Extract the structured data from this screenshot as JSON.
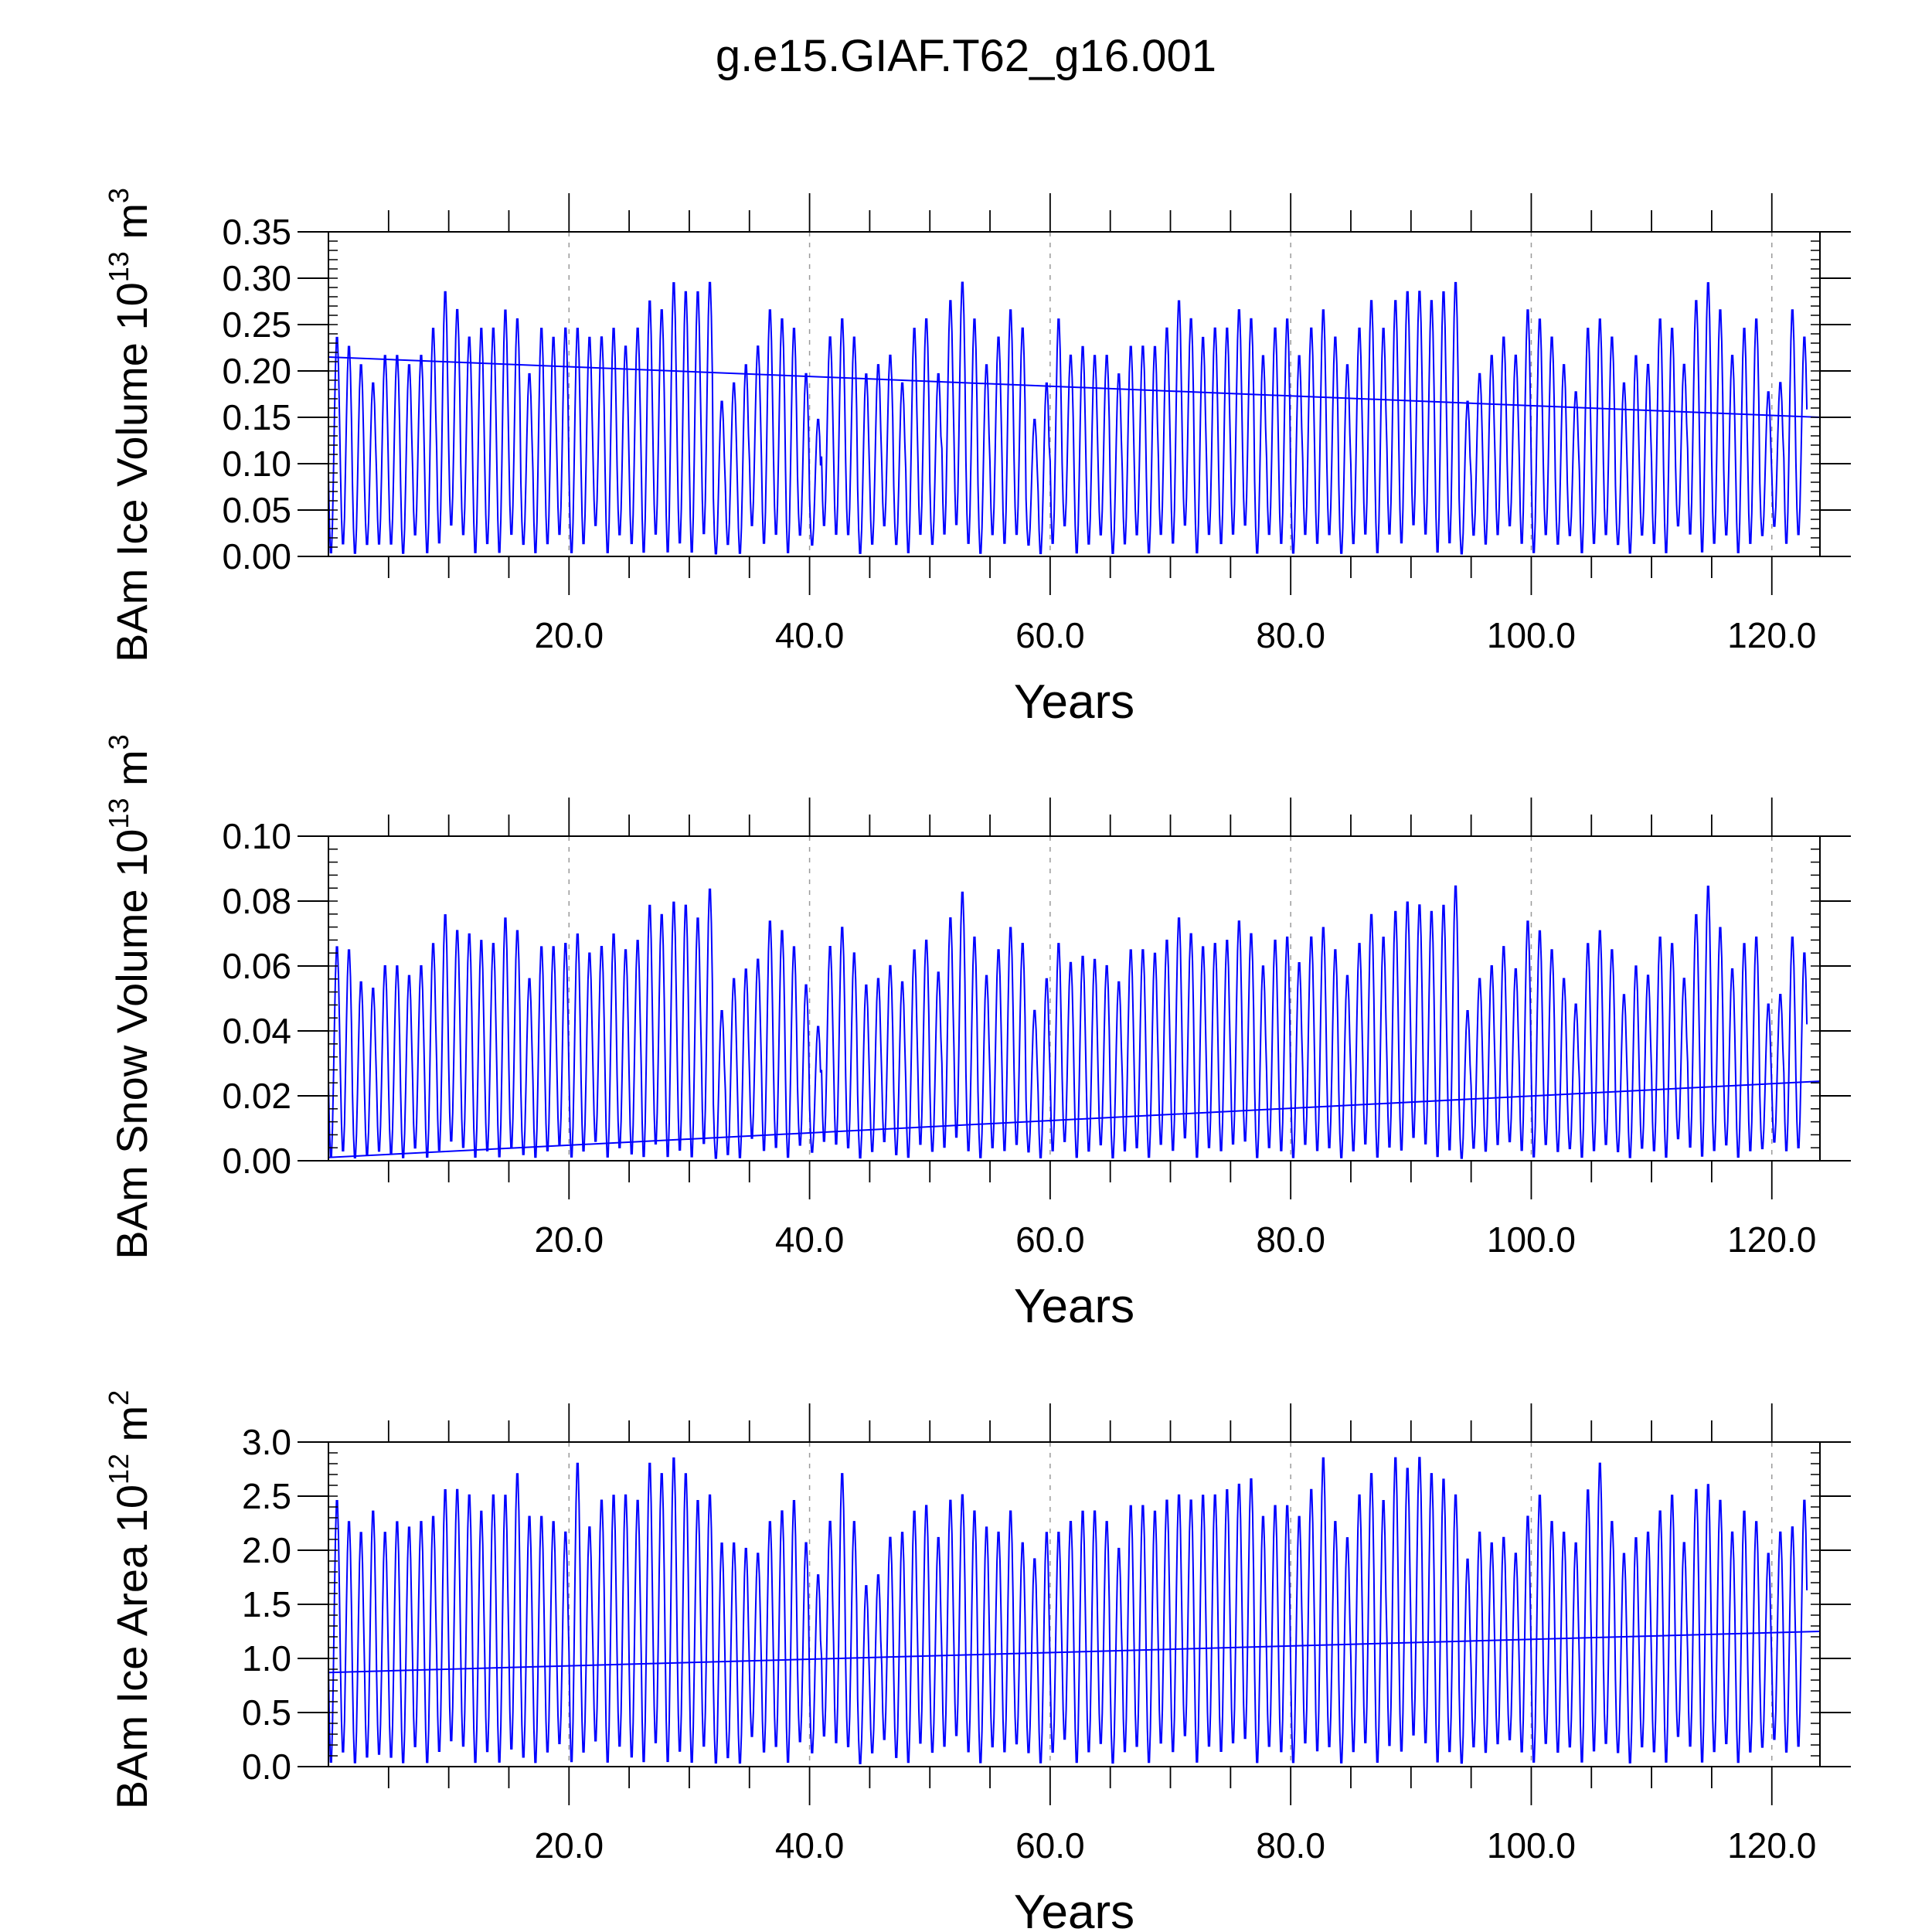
{
  "figure": {
    "title": "g.e15.GIAF.T62_g16.001"
  },
  "chart_data": [
    {
      "type": "line",
      "ylabel": "BAm Ice Volume",
      "yunit": {
        "base": "10",
        "exp": "13",
        "unit": "m",
        "unit_exp": "3"
      },
      "xlabel": "Years",
      "xlim": [
        0.0,
        124.0
      ],
      "ylim": [
        0.0,
        0.35
      ],
      "xticks": [
        20,
        40,
        60,
        80,
        100,
        120
      ],
      "xtick_labels": [
        "20.0",
        "40.0",
        "60.0",
        "80.0",
        "100.0",
        "120.0"
      ],
      "yticks": [
        0.0,
        0.05,
        0.1,
        0.15,
        0.2,
        0.25,
        0.3,
        0.35
      ],
      "ytick_labels": [
        "0.00",
        "0.05",
        "0.10",
        "0.15",
        "0.20",
        "0.25",
        "0.30",
        "0.35"
      ],
      "grid": "vertical dashed at major x ticks",
      "color": "#0000ff",
      "series": [
        {
          "style": "monthly seasonal cycle",
          "annual_max": [
            0.24,
            0.23,
            0.21,
            0.19,
            0.22,
            0.22,
            0.21,
            0.22,
            0.25,
            0.29,
            0.27,
            0.24,
            0.25,
            0.25,
            0.27,
            0.26,
            0.2,
            0.25,
            0.24,
            0.25,
            0.25,
            0.24,
            0.24,
            0.25,
            0.23,
            0.25,
            0.28,
            0.27,
            0.3,
            0.29,
            0.29,
            0.3,
            0.17,
            0.19,
            0.21,
            0.23,
            0.27,
            0.26,
            0.25,
            0.2,
            0.15,
            0.24,
            0.26,
            0.24,
            0.2,
            0.21,
            0.22,
            0.19,
            0.25,
            0.26,
            0.2,
            0.28,
            0.3,
            0.26,
            0.21,
            0.24,
            0.27,
            0.25,
            0.15,
            0.19,
            0.26,
            0.22,
            0.23,
            0.22,
            0.22,
            0.2,
            0.23,
            0.23,
            0.23,
            0.25,
            0.28,
            0.26,
            0.24,
            0.25,
            0.25,
            0.27,
            0.26,
            0.22,
            0.25,
            0.26,
            0.22,
            0.25,
            0.27,
            0.24,
            0.21,
            0.25,
            0.28,
            0.25,
            0.28,
            0.29,
            0.29,
            0.28,
            0.29,
            0.3,
            0.17,
            0.2,
            0.22,
            0.24,
            0.22,
            0.27,
            0.26,
            0.24,
            0.21,
            0.18,
            0.25,
            0.26,
            0.24,
            0.19,
            0.22,
            0.21,
            0.26,
            0.25,
            0.21,
            0.28,
            0.3,
            0.27,
            0.22,
            0.25,
            0.26,
            0.18,
            0.19,
            0.27,
            0.24
          ],
          "annual_min": [
            0.0,
            0.01,
            0.0,
            0.01,
            0.01,
            0.01,
            0.0,
            0.02,
            0.0,
            0.01,
            0.03,
            0.02,
            0.0,
            0.01,
            0.0,
            0.02,
            0.01,
            0.0,
            0.01,
            0.02,
            0.0,
            0.01,
            0.03,
            0.0,
            0.02,
            0.01,
            0.0,
            0.02,
            0.0,
            0.01,
            0.0,
            0.02,
            0.0,
            0.01,
            0.0,
            0.03,
            0.01,
            0.02,
            0.0,
            0.02,
            0.01,
            0.03,
            0.02,
            0.02,
            0.0,
            0.01,
            0.03,
            0.01,
            0.0,
            0.02,
            0.01,
            0.02,
            0.03,
            0.01,
            0.0,
            0.02,
            0.01,
            0.02,
            0.01,
            0.0,
            0.01,
            0.03,
            0.0,
            0.01,
            0.02,
            0.0,
            0.01,
            0.02,
            0.0,
            0.02,
            0.01,
            0.03,
            0.0,
            0.02,
            0.01,
            0.02,
            0.03,
            0.0,
            0.02,
            0.01,
            0.0,
            0.02,
            0.01,
            0.02,
            0.0,
            0.01,
            0.02,
            0.0,
            0.02,
            0.01,
            0.03,
            0.02,
            0.0,
            0.01,
            0.0,
            0.02,
            0.01,
            0.02,
            0.03,
            0.01,
            0.0,
            0.02,
            0.01,
            0.02,
            0.0,
            0.01,
            0.02,
            0.01,
            0.0,
            0.02,
            0.01,
            0.0,
            0.03,
            0.02,
            0.0,
            0.01,
            0.02,
            0.0,
            0.01,
            0.02,
            0.03,
            0.01,
            0.02,
            0.01
          ]
        },
        {
          "style": "linear trend",
          "x": [
            0.0,
            124.0
          ],
          "y": [
            0.215,
            0.15
          ]
        }
      ]
    },
    {
      "type": "line",
      "ylabel": "BAm Snow Volume",
      "yunit": {
        "base": "10",
        "exp": "13",
        "unit": "m",
        "unit_exp": "3"
      },
      "xlabel": "Years",
      "xlim": [
        0.0,
        124.0
      ],
      "ylim": [
        0.0,
        0.1
      ],
      "xticks": [
        20,
        40,
        60,
        80,
        100,
        120
      ],
      "xtick_labels": [
        "20.0",
        "40.0",
        "60.0",
        "80.0",
        "100.0",
        "120.0"
      ],
      "yticks": [
        0.0,
        0.02,
        0.04,
        0.06,
        0.08,
        0.1
      ],
      "ytick_labels": [
        "0.00",
        "0.02",
        "0.04",
        "0.06",
        "0.08",
        "0.10"
      ],
      "grid": "vertical dashed at major x ticks",
      "color": "#0000ff",
      "series": [
        {
          "style": "monthly seasonal cycle",
          "annual_max": [
            0.067,
            0.066,
            0.056,
            0.054,
            0.061,
            0.061,
            0.058,
            0.061,
            0.068,
            0.077,
            0.072,
            0.071,
            0.069,
            0.068,
            0.076,
            0.072,
            0.057,
            0.067,
            0.067,
            0.068,
            0.071,
            0.065,
            0.067,
            0.071,
            0.066,
            0.069,
            0.08,
            0.077,
            0.081,
            0.08,
            0.076,
            0.085,
            0.047,
            0.057,
            0.06,
            0.063,
            0.075,
            0.072,
            0.067,
            0.055,
            0.042,
            0.067,
            0.073,
            0.065,
            0.055,
            0.057,
            0.061,
            0.056,
            0.066,
            0.069,
            0.059,
            0.076,
            0.084,
            0.07,
            0.058,
            0.066,
            0.073,
            0.068,
            0.047,
            0.057,
            0.068,
            0.062,
            0.064,
            0.063,
            0.061,
            0.056,
            0.066,
            0.066,
            0.065,
            0.069,
            0.076,
            0.071,
            0.067,
            0.068,
            0.069,
            0.075,
            0.071,
            0.061,
            0.069,
            0.07,
            0.062,
            0.07,
            0.073,
            0.066,
            0.058,
            0.068,
            0.077,
            0.07,
            0.078,
            0.081,
            0.08,
            0.078,
            0.08,
            0.086,
            0.047,
            0.057,
            0.061,
            0.067,
            0.06,
            0.075,
            0.072,
            0.066,
            0.057,
            0.049,
            0.068,
            0.072,
            0.066,
            0.052,
            0.061,
            0.058,
            0.07,
            0.068,
            0.057,
            0.077,
            0.086,
            0.073,
            0.06,
            0.068,
            0.07,
            0.049,
            0.052,
            0.07,
            0.065
          ],
          "annual_min": [
            0.0,
            0.002,
            0.0,
            0.001,
            0.002,
            0.001,
            0.0,
            0.003,
            0.0,
            0.002,
            0.005,
            0.003,
            0.0,
            0.002,
            0.0,
            0.003,
            0.001,
            0.0,
            0.002,
            0.004,
            0.0,
            0.002,
            0.005,
            0.0,
            0.003,
            0.001,
            0.0,
            0.004,
            0.0,
            0.002,
            0.0,
            0.004,
            0.0,
            0.001,
            0.0,
            0.006,
            0.002,
            0.003,
            0.0,
            0.004,
            0.002,
            0.005,
            0.004,
            0.003,
            0.0,
            0.002,
            0.005,
            0.001,
            0.0,
            0.004,
            0.002,
            0.003,
            0.006,
            0.002,
            0.0,
            0.003,
            0.002,
            0.004,
            0.002,
            0.0,
            0.002,
            0.005,
            0.0,
            0.002,
            0.004,
            0.0,
            0.002,
            0.003,
            0.0,
            0.004,
            0.002,
            0.006,
            0.0,
            0.003,
            0.002,
            0.004,
            0.005,
            0.0,
            0.003,
            0.002,
            0.0,
            0.004,
            0.002,
            0.003,
            0.0,
            0.002,
            0.004,
            0.0,
            0.003,
            0.002,
            0.006,
            0.004,
            0.0,
            0.002,
            0.0,
            0.003,
            0.002,
            0.004,
            0.005,
            0.002,
            0.0,
            0.004,
            0.002,
            0.003,
            0.0,
            0.002,
            0.004,
            0.002,
            0.0,
            0.003,
            0.002,
            0.0,
            0.006,
            0.003,
            0.0,
            0.002,
            0.004,
            0.0,
            0.002,
            0.003,
            0.005,
            0.002,
            0.003,
            0.002
          ]
        },
        {
          "style": "linear trend",
          "x": [
            0.0,
            124.0
          ],
          "y": [
            0.001,
            0.0245
          ]
        }
      ]
    },
    {
      "type": "line",
      "ylabel": "BAm Ice Area",
      "yunit": {
        "base": "10",
        "exp": "12",
        "unit": "m",
        "unit_exp": "2"
      },
      "xlabel": "Years",
      "xlim": [
        0.0,
        124.0
      ],
      "ylim": [
        0.0,
        3.0
      ],
      "xticks": [
        20,
        40,
        60,
        80,
        100,
        120
      ],
      "xtick_labels": [
        "20.0",
        "40.0",
        "60.0",
        "80.0",
        "100.0",
        "120.0"
      ],
      "yticks": [
        0.0,
        0.5,
        1.0,
        1.5,
        2.0,
        2.5,
        3.0
      ],
      "ytick_labels": [
        "0.0",
        "0.5",
        "1.0",
        "1.5",
        "2.0",
        "2.5",
        "3.0"
      ],
      "grid": "vertical dashed at major x ticks",
      "color": "#0000ff",
      "series": [
        {
          "style": "monthly seasonal cycle",
          "annual_max": [
            2.5,
            2.3,
            2.2,
            2.4,
            2.2,
            2.3,
            2.25,
            2.3,
            2.35,
            2.6,
            2.6,
            2.55,
            2.4,
            2.55,
            2.55,
            2.75,
            2.35,
            2.35,
            2.3,
            2.2,
            2.85,
            2.25,
            2.5,
            2.55,
            2.55,
            2.5,
            2.85,
            2.75,
            2.9,
            2.75,
            2.5,
            2.55,
            2.1,
            2.1,
            2.05,
            2.0,
            2.3,
            2.4,
            2.5,
            2.1,
            1.8,
            2.3,
            2.75,
            2.3,
            1.7,
            1.8,
            2.15,
            2.2,
            2.4,
            2.45,
            2.15,
            2.5,
            2.55,
            2.4,
            2.25,
            2.2,
            2.4,
            2.1,
            1.95,
            2.2,
            2.2,
            2.3,
            2.4,
            2.4,
            2.3,
            2.05,
            2.45,
            2.45,
            2.4,
            2.5,
            2.55,
            2.5,
            2.55,
            2.55,
            2.6,
            2.65,
            2.7,
            2.35,
            2.45,
            2.45,
            2.35,
            2.6,
            2.9,
            2.3,
            2.15,
            2.55,
            2.75,
            2.5,
            2.9,
            2.8,
            2.9,
            2.75,
            2.7,
            2.55,
            1.95,
            2.2,
            2.1,
            2.15,
            2.0,
            2.35,
            2.55,
            2.3,
            2.2,
            2.1,
            2.6,
            2.85,
            2.3,
            2.0,
            2.15,
            2.2,
            2.4,
            2.55,
            2.1,
            2.6,
            2.65,
            2.5,
            2.2,
            2.4,
            2.3,
            2.0,
            2.2,
            2.25,
            2.5
          ],
          "annual_min": [
            0.0,
            0.1,
            0.0,
            0.05,
            0.08,
            0.05,
            0.0,
            0.15,
            0.0,
            0.1,
            0.2,
            0.15,
            0.0,
            0.1,
            0.0,
            0.12,
            0.05,
            0.0,
            0.1,
            0.18,
            0.0,
            0.1,
            0.2,
            0.0,
            0.15,
            0.05,
            0.0,
            0.18,
            0.0,
            0.1,
            0.0,
            0.15,
            0.0,
            0.05,
            0.0,
            0.25,
            0.1,
            0.15,
            0.0,
            0.2,
            0.1,
            0.25,
            0.18,
            0.15,
            0.0,
            0.1,
            0.22,
            0.05,
            0.0,
            0.18,
            0.1,
            0.15,
            0.25,
            0.1,
            0.0,
            0.15,
            0.1,
            0.18,
            0.1,
            0.0,
            0.1,
            0.22,
            0.0,
            0.1,
            0.18,
            0.0,
            0.1,
            0.15,
            0.0,
            0.18,
            0.1,
            0.25,
            0.0,
            0.15,
            0.1,
            0.18,
            0.22,
            0.0,
            0.15,
            0.1,
            0.0,
            0.18,
            0.1,
            0.15,
            0.0,
            0.1,
            0.18,
            0.0,
            0.15,
            0.1,
            0.25,
            0.18,
            0.0,
            0.1,
            0.0,
            0.15,
            0.1,
            0.18,
            0.22,
            0.1,
            0.0,
            0.18,
            0.1,
            0.15,
            0.0,
            0.1,
            0.18,
            0.1,
            0.0,
            0.15,
            0.1,
            0.0,
            0.25,
            0.15,
            0.0,
            0.1,
            0.18,
            0.0,
            0.1,
            0.15,
            0.22,
            0.1,
            0.15,
            0.1
          ]
        },
        {
          "style": "linear trend",
          "x": [
            0.0,
            124.0
          ],
          "y": [
            0.87,
            1.25
          ]
        }
      ]
    }
  ]
}
